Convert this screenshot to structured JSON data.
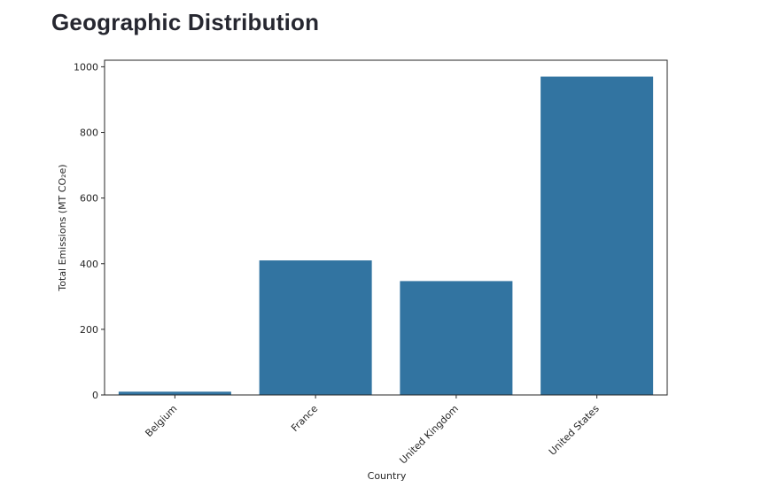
{
  "page": {
    "title": "Geographic Distribution"
  },
  "chart_data": {
    "type": "bar",
    "categories": [
      "Belgium",
      "France",
      "United Kingdom",
      "United States"
    ],
    "values": [
      10,
      410,
      347,
      970
    ],
    "xlabel": "Country",
    "ylabel": "Total Emissions (MT CO₂e)",
    "ylim": [
      0,
      1020
    ],
    "yticks": [
      0,
      200,
      400,
      600,
      800,
      1000
    ],
    "grid": false,
    "legend": "none",
    "colors": {
      "bar": "#3274a1",
      "axis": "#262626"
    }
  }
}
